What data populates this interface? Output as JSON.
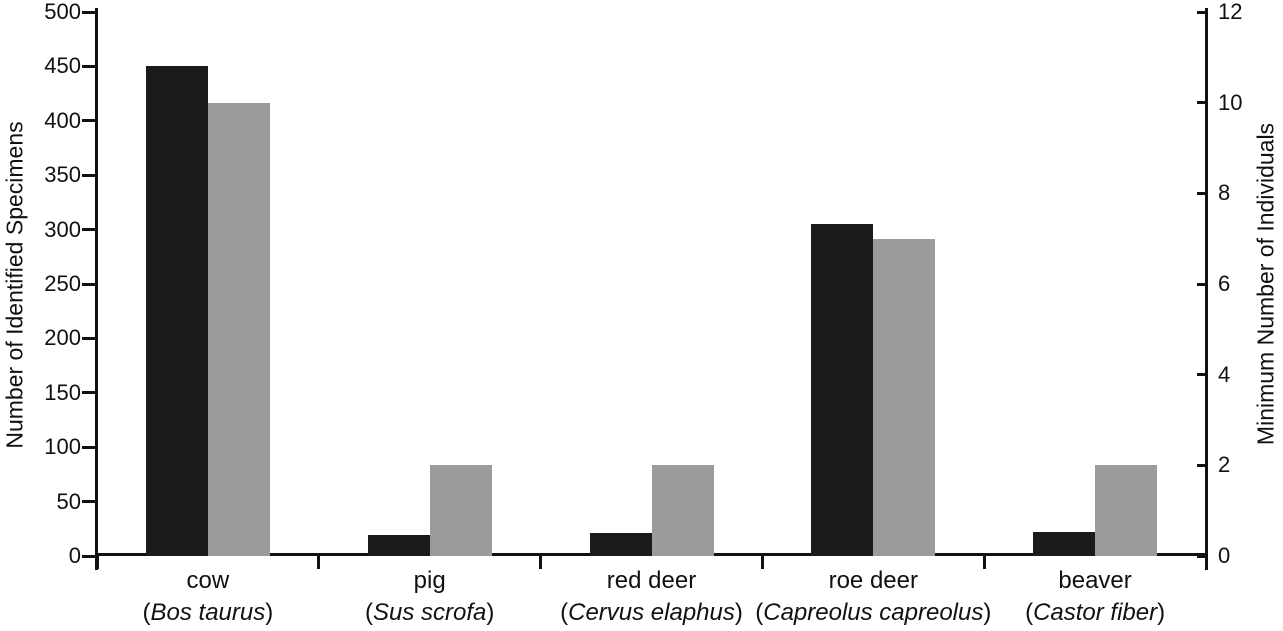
{
  "figure": {
    "background": "#ffffff",
    "axis_color": "#111111"
  },
  "chart_data": {
    "type": "bar",
    "title": "",
    "grid": false,
    "legend": "none",
    "categories": [
      {
        "name": "cow",
        "latin": "Bos taurus"
      },
      {
        "name": "pig",
        "latin": "Sus scrofa"
      },
      {
        "name": "red deer",
        "latin": "Cervus elaphus"
      },
      {
        "name": "roe deer",
        "latin": "Capreolus capreolus"
      },
      {
        "name": "beaver",
        "latin": "Castor fiber"
      }
    ],
    "series": [
      {
        "name": "Number of Identified Specimens",
        "axis": "left",
        "color": "#1b1b1b",
        "values": [
          450,
          19,
          21,
          305,
          22
        ]
      },
      {
        "name": "Minimum Number of Individuals",
        "axis": "right",
        "color": "#9b9b9b",
        "values": [
          10,
          2,
          2,
          7,
          2
        ]
      }
    ],
    "left_axis": {
      "label": "Number of Identified Specimens",
      "min": 0,
      "max": 500,
      "step": 50,
      "ticks": [
        "0",
        "50",
        "100",
        "150",
        "200",
        "250",
        "300",
        "350",
        "400",
        "450",
        "500"
      ]
    },
    "right_axis": {
      "label": "Minimum Number of Individuals",
      "min": 0,
      "max": 12,
      "step": 2,
      "ticks": [
        "0",
        "2",
        "4",
        "6",
        "8",
        "10",
        "12"
      ]
    }
  }
}
